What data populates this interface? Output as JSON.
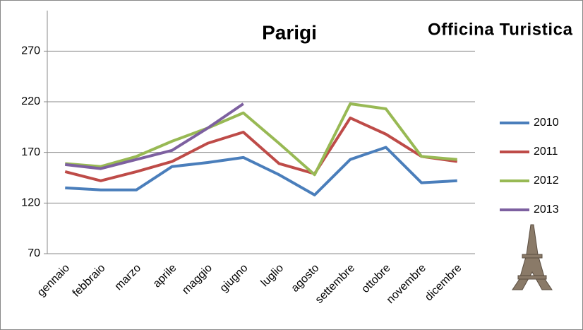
{
  "chart_data": {
    "type": "line",
    "title": "Parigi",
    "logo": "Officina Turistica",
    "categories": [
      "gennaio",
      "febbraio",
      "marzo",
      "aprile",
      "maggio",
      "giugno",
      "luglio",
      "agosto",
      "settembre",
      "ottobre",
      "novembre",
      "dicembre"
    ],
    "series": [
      {
        "name": "2010",
        "color": "#4a7ebb",
        "values": [
          135,
          133,
          133,
          156,
          160,
          165,
          148,
          128,
          163,
          175,
          140,
          142
        ]
      },
      {
        "name": "2011",
        "color": "#be4b48",
        "values": [
          151,
          142,
          151,
          161,
          179,
          190,
          159,
          149,
          204,
          188,
          166,
          161
        ]
      },
      {
        "name": "2012",
        "color": "#98b954",
        "values": [
          159,
          156,
          166,
          181,
          194,
          209,
          179,
          148,
          218,
          213,
          166,
          163
        ]
      },
      {
        "name": "2013",
        "color": "#7d60a0",
        "values": [
          158,
          154,
          163,
          172,
          194,
          218,
          null,
          null,
          null,
          null,
          null,
          null
        ]
      }
    ],
    "ylim": [
      70,
      310
    ],
    "yticks": [
      70,
      120,
      170,
      220,
      270
    ],
    "grid": true,
    "legend": "right"
  }
}
